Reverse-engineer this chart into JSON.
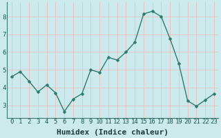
{
  "x": [
    0,
    1,
    2,
    3,
    4,
    5,
    6,
    7,
    8,
    9,
    10,
    11,
    12,
    13,
    14,
    15,
    16,
    17,
    18,
    19,
    20,
    21,
    22,
    23
  ],
  "y": [
    4.6,
    4.9,
    4.35,
    3.75,
    4.15,
    3.7,
    2.65,
    3.35,
    3.65,
    5.0,
    4.85,
    5.7,
    5.55,
    6.0,
    6.55,
    8.15,
    8.3,
    8.0,
    6.75,
    5.35,
    3.25,
    2.95,
    3.3,
    3.65
  ],
  "xlabel": "Humidex (Indice chaleur)",
  "ylim": [
    2.3,
    8.8
  ],
  "xlim": [
    -0.5,
    23.5
  ],
  "yticks": [
    3,
    4,
    5,
    6,
    7,
    8
  ],
  "xticks": [
    0,
    1,
    2,
    3,
    4,
    5,
    6,
    7,
    8,
    9,
    10,
    11,
    12,
    13,
    14,
    15,
    16,
    17,
    18,
    19,
    20,
    21,
    22,
    23
  ],
  "line_color": "#2d7a6e",
  "marker_color": "#2d7a6e",
  "bg_color": "#cce9eb",
  "grid_color_major": "#e8c0c0",
  "grid_color_minor": "#e8c0c0",
  "tick_color": "#1a5a52",
  "xlabel_color": "#1a3a3a",
  "xlabel_fontsize": 8,
  "tick_fontsize": 6.5
}
